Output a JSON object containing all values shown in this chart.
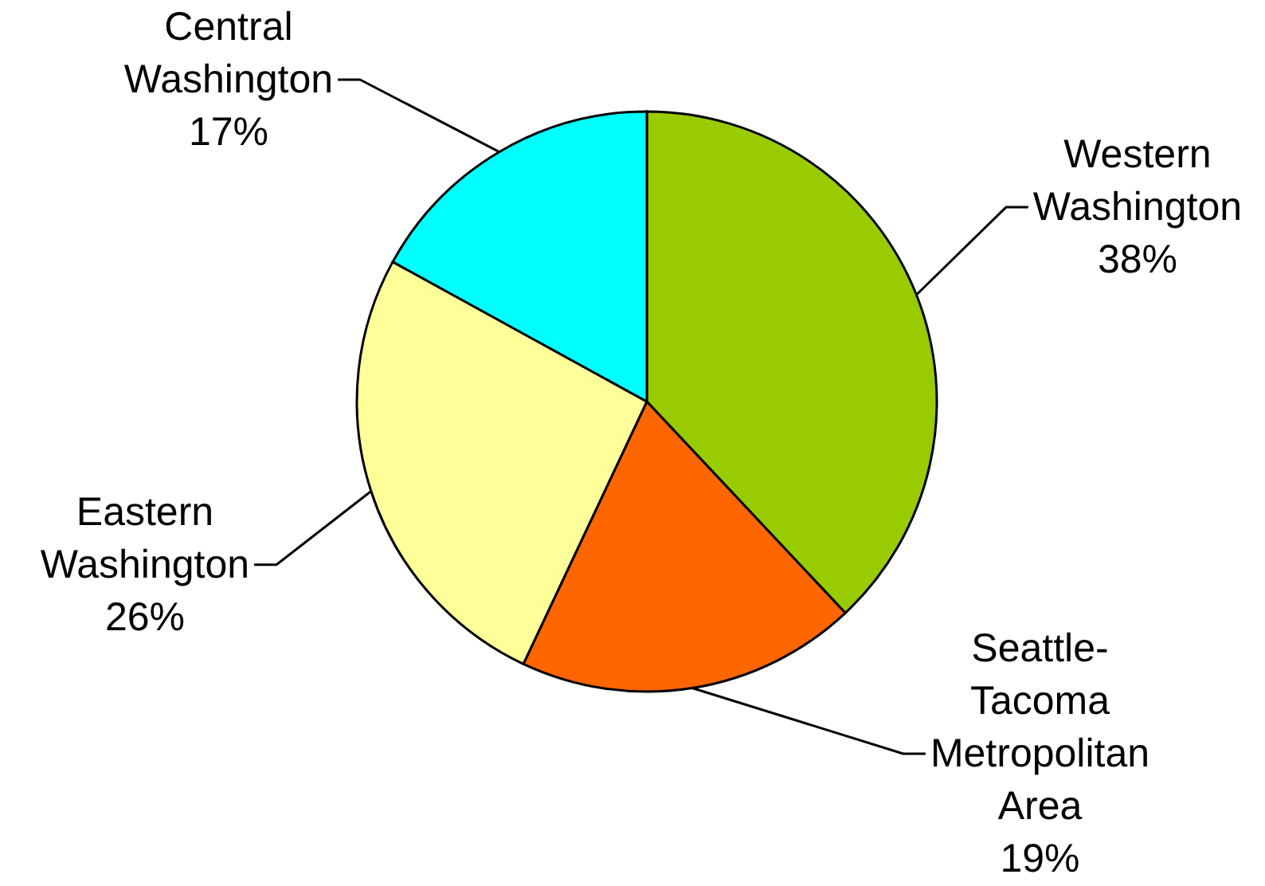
{
  "chart_data": {
    "type": "pie",
    "categories": [
      "Western Washington",
      "Seattle-Tacoma Metropolitan Area",
      "Eastern Washington",
      "Central Washington"
    ],
    "values": [
      38,
      19,
      26,
      17
    ],
    "colors": [
      "#99cc00",
      "#ff6600",
      "#ffff99",
      "#00ffff"
    ],
    "value_labels": [
      "38%",
      "19%",
      "26%",
      "17%"
    ]
  }
}
